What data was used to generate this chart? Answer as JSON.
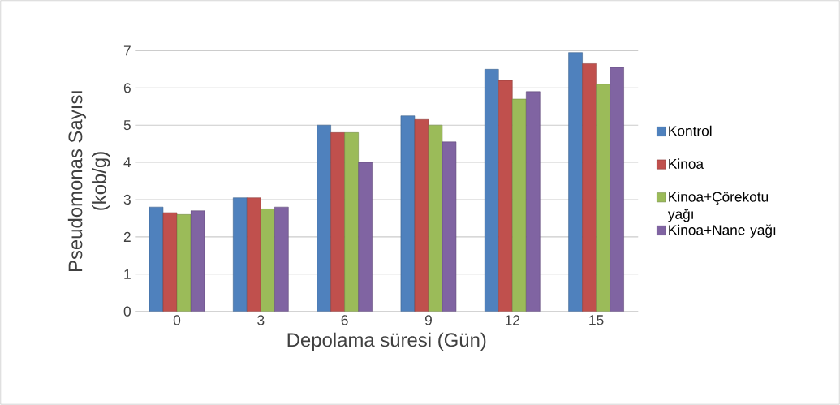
{
  "chart_data": {
    "type": "bar",
    "xlabel": "Depolama süresi (Gün)",
    "ylabel": "Pseudomonas Sayısı (kob/g)",
    "categories": [
      "0",
      "3",
      "6",
      "9",
      "12",
      "15"
    ],
    "series": [
      {
        "name": "Kontrol",
        "color": "#4f81bd",
        "values": [
          2.8,
          3.05,
          5.0,
          5.25,
          6.5,
          6.95
        ]
      },
      {
        "name": "Kinoa",
        "color": "#c0504d",
        "values": [
          2.65,
          3.05,
          4.8,
          5.15,
          6.2,
          6.65
        ]
      },
      {
        "name": "Kinoa+Çörekotu yağı",
        "color": "#9bbb59",
        "values": [
          2.6,
          2.75,
          4.8,
          5.0,
          5.7,
          6.1
        ]
      },
      {
        "name": "Kinoa+Nane yağı",
        "color": "#8064a2",
        "values": [
          2.7,
          2.8,
          4.0,
          4.55,
          5.9,
          6.55
        ]
      }
    ],
    "ylim": [
      0,
      7
    ],
    "yticks": [
      0,
      1,
      2,
      3,
      4,
      5,
      6,
      7
    ],
    "grid": "y",
    "legend": "right"
  }
}
